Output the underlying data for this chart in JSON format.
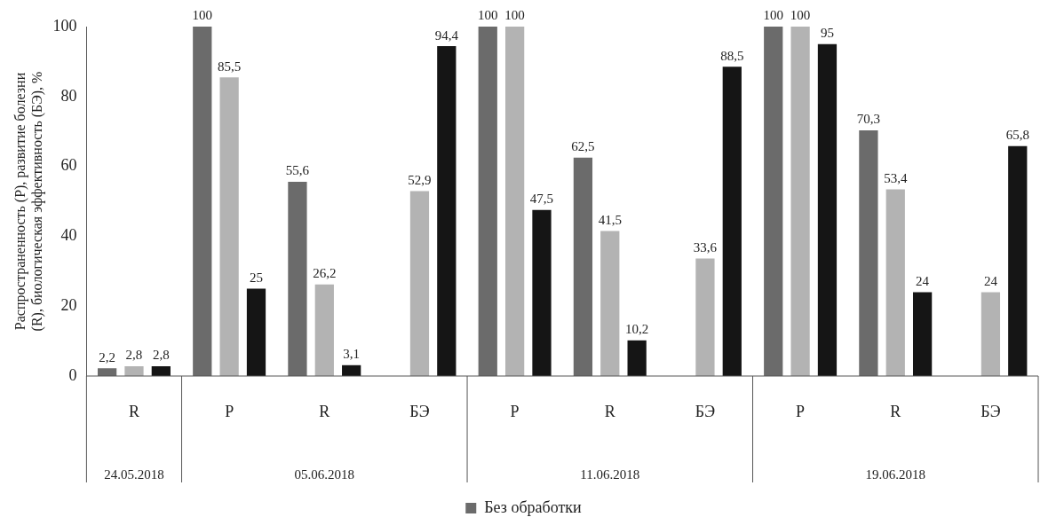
{
  "chart_data": {
    "type": "bar",
    "ylabel": "Распространенность (Р), развитие болезни (R), биологическая эффективность (БЭ), %",
    "categories": [
      "R",
      "Р",
      "R",
      "БЭ",
      "Р",
      "R",
      "БЭ",
      "Р",
      "R",
      "БЭ"
    ],
    "annotations": [
      "24.05.2018",
      "05.06.2018",
      "11.06.2018",
      "19.06.2018"
    ],
    "series": [
      {
        "name": "Без обработки",
        "color": "#6b6b6b",
        "values": [
          2.2,
          100,
          55.6,
          null,
          100,
          62.5,
          null,
          100,
          70.3,
          null
        ],
        "value_labels": [
          "2,2",
          "100",
          "55,6",
          null,
          "100",
          "62,5",
          null,
          "100",
          "70,3",
          null
        ]
      },
      {
        "color": "#b3b3b3",
        "values": [
          2.8,
          85.5,
          26.2,
          52.9,
          100,
          41.5,
          33.6,
          100,
          53.4,
          24
        ],
        "value_labels": [
          "2,8",
          "85,5",
          "26,2",
          "52,9",
          "100",
          "41,5",
          "33,6",
          "100",
          "53,4",
          "24"
        ]
      },
      {
        "color": "#151515",
        "values": [
          2.8,
          25,
          3.1,
          94.4,
          47.5,
          10.2,
          88.5,
          95,
          24,
          65.8
        ],
        "value_labels": [
          "2,8",
          "25",
          "3,1",
          "94,4",
          "47,5",
          "10,2",
          "88,5",
          "95",
          "24",
          "65,8"
        ]
      }
    ],
    "ylim": [
      0,
      100
    ],
    "yticks": [
      0,
      20,
      40,
      60,
      80,
      100
    ],
    "grid": false,
    "legend": "bottom"
  }
}
